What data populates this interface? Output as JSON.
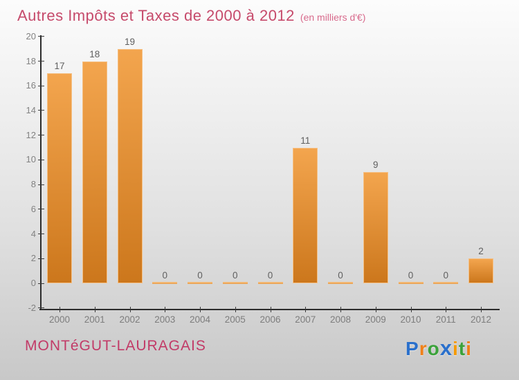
{
  "page": {
    "title": "Autres Impôts et Taxes de 2000 à 2012",
    "subtitle": "(en milliers d'€)",
    "footer_left": "MONTéGUT-LAURAGAIS"
  },
  "logo": {
    "name": "Proxiti",
    "letters": [
      {
        "char": "P",
        "color": "#2a70cc"
      },
      {
        "char": "r",
        "color": "#f08018"
      },
      {
        "char": "o",
        "color": "#3ba23a"
      },
      {
        "char": "x",
        "color": "#2a70cc"
      },
      {
        "char": "i",
        "color": "#f59a00"
      },
      {
        "char": "t",
        "color": "#3ba23a"
      },
      {
        "char": "i",
        "color": "#ef7f17"
      }
    ]
  },
  "colors": {
    "title": "#c64a6b",
    "subtitle": "#d86a8c",
    "commune": "#c23a67",
    "axis": "#2b2b2b",
    "tick_label": "#828282",
    "value_label": "#5f5f5f",
    "bar_top": "#f3a54e",
    "bar_bottom": "#cc771c",
    "bar_border": "#f5c084",
    "background_top": "#fcfcfc",
    "background_bottom": "#c8c8c8"
  },
  "chart_data": {
    "type": "bar",
    "title": "Autres Impôts et Taxes de 2000 à 2012",
    "subtitle": "(en milliers d'€)",
    "xlabel": "",
    "ylabel": "",
    "categories": [
      "2000",
      "2001",
      "2002",
      "2003",
      "2004",
      "2005",
      "2006",
      "2007",
      "2008",
      "2009",
      "2010",
      "2011",
      "2012"
    ],
    "values": [
      17,
      18,
      19,
      0,
      0,
      0,
      0,
      11,
      0,
      9,
      0,
      0,
      2
    ],
    "ylim": [
      -2,
      20
    ],
    "yticks": [
      20,
      18,
      16,
      14,
      12,
      10,
      8,
      6,
      4,
      2,
      0,
      -2
    ],
    "grid": false,
    "legend": false,
    "bar_labels_shown": true
  }
}
